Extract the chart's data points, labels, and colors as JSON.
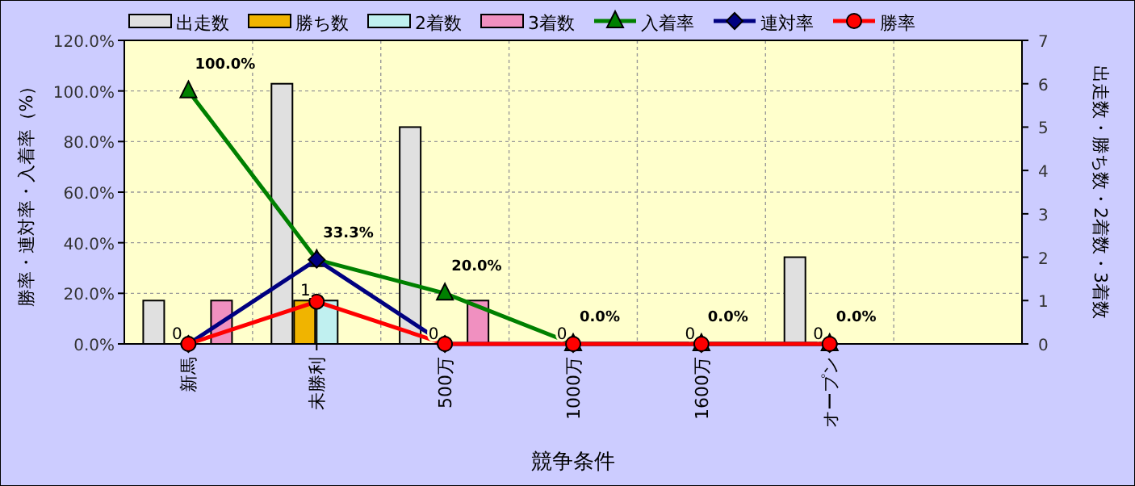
{
  "chart_data": {
    "type": "bar",
    "xlabel": "競争条件",
    "ylabel": "勝率・連対率・入着率（%）",
    "y2label": "出走数・勝ち数・2着数・3着数",
    "categories": [
      "新馬",
      "未勝利",
      "500万",
      "1000万",
      "1600万",
      "オープン",
      null
    ],
    "series": [
      {
        "name": "出走数",
        "axis": "y2",
        "color": "#e0e0e0",
        "values": [
          1,
          6,
          5,
          0,
          0,
          2,
          null
        ]
      },
      {
        "name": "勝ち数",
        "axis": "y2",
        "color": "#f0b400",
        "values": [
          0,
          1,
          0,
          0,
          0,
          0,
          null
        ],
        "value_labels": [
          "0",
          "1",
          "0",
          "0",
          "0",
          "0",
          null
        ]
      },
      {
        "name": "2着数",
        "axis": "y2",
        "color": "#c0f0f0",
        "values": [
          0,
          1,
          0,
          0,
          0,
          0,
          null
        ]
      },
      {
        "name": "3着数",
        "axis": "y2",
        "color": "#f090c0",
        "values": [
          1,
          0,
          1,
          0,
          0,
          0,
          null
        ]
      },
      {
        "name": "入着率",
        "type": "line",
        "axis": "y",
        "color": "#008000",
        "marker": "triangle",
        "values": [
          100,
          33.3,
          20,
          0,
          0,
          0,
          null
        ],
        "value_labels": [
          "100.0%",
          "33.3%",
          "20.0%",
          "0.0%",
          "0.0%",
          "0.0%",
          null
        ]
      },
      {
        "name": "連対率",
        "type": "line",
        "axis": "y",
        "color": "#000080",
        "marker": "diamond",
        "values": [
          0,
          33.3,
          0,
          0,
          0,
          0,
          null
        ]
      },
      {
        "name": "勝率",
        "type": "line",
        "axis": "y",
        "color": "#ff0000",
        "marker": "circle",
        "values": [
          0,
          16.7,
          0,
          0,
          0,
          0,
          null
        ]
      }
    ],
    "ylim": [
      0,
      120
    ],
    "yticks": [
      {
        "value": 0,
        "label": "0.0%"
      },
      {
        "value": 20,
        "label": "20.0%"
      },
      {
        "value": 40,
        "label": "40.0%"
      },
      {
        "value": 60,
        "label": "60.0%"
      },
      {
        "value": 80,
        "label": "80.0%"
      },
      {
        "value": 100,
        "label": "100.0%"
      },
      {
        "value": 120,
        "label": "120.0%"
      }
    ],
    "y2lim": [
      0,
      7
    ],
    "y2ticks": [
      0,
      1,
      2,
      3,
      4,
      5,
      6,
      7
    ],
    "grid": true,
    "legend": "top"
  }
}
